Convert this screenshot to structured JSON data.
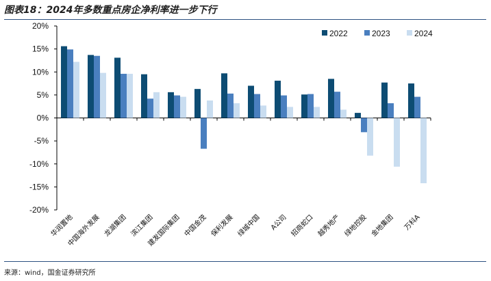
{
  "figure": {
    "title": "图表18：2024年多数重点房企净利率进一步下行",
    "source": "来源：wind，国金证券研究所"
  },
  "colors": {
    "series": [
      "#0d4c73",
      "#4a7fbf",
      "#c9ddf0"
    ],
    "rule": "#2b4f80",
    "axis": "#000000"
  },
  "chart_data": {
    "type": "bar",
    "categories": [
      "华润置地",
      "中国海外发展",
      "龙湖集团",
      "滨江集团",
      "建发国际集团",
      "中国金茂",
      "保利发展",
      "绿城中国",
      "A公司",
      "招商蛇口",
      "越秀地产",
      "绿地控股",
      "金地集团",
      "万科A"
    ],
    "series": [
      {
        "name": "2022",
        "values": [
          15.6,
          13.7,
          13.1,
          9.5,
          5.6,
          6.3,
          9.7,
          7.0,
          8.1,
          5.1,
          8.5,
          1.1,
          7.7,
          7.5
        ]
      },
      {
        "name": "2023",
        "values": [
          14.9,
          13.5,
          9.6,
          4.2,
          4.9,
          -6.7,
          5.3,
          5.2,
          4.9,
          5.2,
          5.7,
          -3.1,
          3.2,
          4.6
        ]
      },
      {
        "name": "2024",
        "values": [
          12.2,
          9.8,
          9.6,
          5.6,
          4.6,
          3.8,
          3.2,
          2.7,
          2.4,
          2.4,
          1.8,
          -8.2,
          -10.6,
          -14.2
        ]
      }
    ],
    "ylim": [
      -20,
      20
    ],
    "yticks": [
      "20%",
      "15%",
      "10%",
      "5%",
      "0%",
      "-5%",
      "-10%",
      "-15%",
      "-20%"
    ],
    "ytick_values": [
      20,
      15,
      10,
      5,
      0,
      -5,
      -10,
      -15,
      -20
    ],
    "legend_position": "top-right",
    "grid": false
  }
}
